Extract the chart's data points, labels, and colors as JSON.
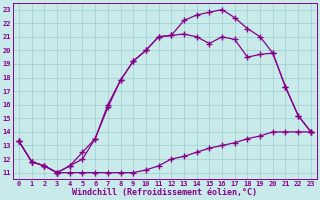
{
  "background_color": "#c8eaea",
  "grid_color": "#9ecece",
  "line_color": "#880088",
  "xlabel": "Windchill (Refroidissement éolien,°C)",
  "xlim": [
    -0.5,
    23.5
  ],
  "ylim": [
    10.5,
    23.5
  ],
  "xticks": [
    0,
    1,
    2,
    3,
    4,
    5,
    6,
    7,
    8,
    9,
    10,
    11,
    12,
    13,
    14,
    15,
    16,
    17,
    18,
    19,
    20,
    21,
    22,
    23
  ],
  "yticks": [
    11,
    12,
    13,
    14,
    15,
    16,
    17,
    18,
    19,
    20,
    21,
    22,
    23
  ],
  "line1_x": [
    0,
    1,
    2,
    3,
    4,
    5,
    6,
    7,
    8,
    9,
    10,
    11,
    12,
    13,
    14,
    15,
    16,
    17,
    18,
    19,
    20,
    21,
    22,
    23
  ],
  "line1_y": [
    13.3,
    11.8,
    11.5,
    11.0,
    11.0,
    11.0,
    11.0,
    11.0,
    11.0,
    11.0,
    11.2,
    11.5,
    12.0,
    12.2,
    12.5,
    12.8,
    13.0,
    13.2,
    13.5,
    13.7,
    14.0,
    14.0,
    14.0,
    14.0
  ],
  "line2_x": [
    0,
    1,
    2,
    3,
    4,
    5,
    6,
    7,
    8,
    9,
    10,
    11,
    12,
    13,
    14,
    15,
    16,
    17,
    18,
    19,
    20,
    21,
    22,
    23
  ],
  "line2_y": [
    13.3,
    11.8,
    11.5,
    11.0,
    11.5,
    12.5,
    13.5,
    16.0,
    17.8,
    19.2,
    20.0,
    21.0,
    21.1,
    21.2,
    21.0,
    20.5,
    21.0,
    20.8,
    19.5,
    19.7,
    19.8,
    17.3,
    15.2,
    14.0
  ],
  "line3_x": [
    0,
    1,
    2,
    3,
    4,
    5,
    6,
    7,
    8,
    9,
    10,
    11,
    12,
    13,
    14,
    15,
    16,
    17,
    18,
    19,
    20,
    21,
    22,
    23
  ],
  "line3_y": [
    13.3,
    11.8,
    11.5,
    11.0,
    11.5,
    12.0,
    13.5,
    15.8,
    17.8,
    19.2,
    20.0,
    21.0,
    21.1,
    22.2,
    22.6,
    22.8,
    23.0,
    22.4,
    21.6,
    21.0,
    19.8,
    17.3,
    15.2,
    14.0
  ],
  "marker": "+",
  "markersize": 4,
  "linewidth": 0.9,
  "xlabel_fontsize": 6,
  "tick_fontsize": 5
}
